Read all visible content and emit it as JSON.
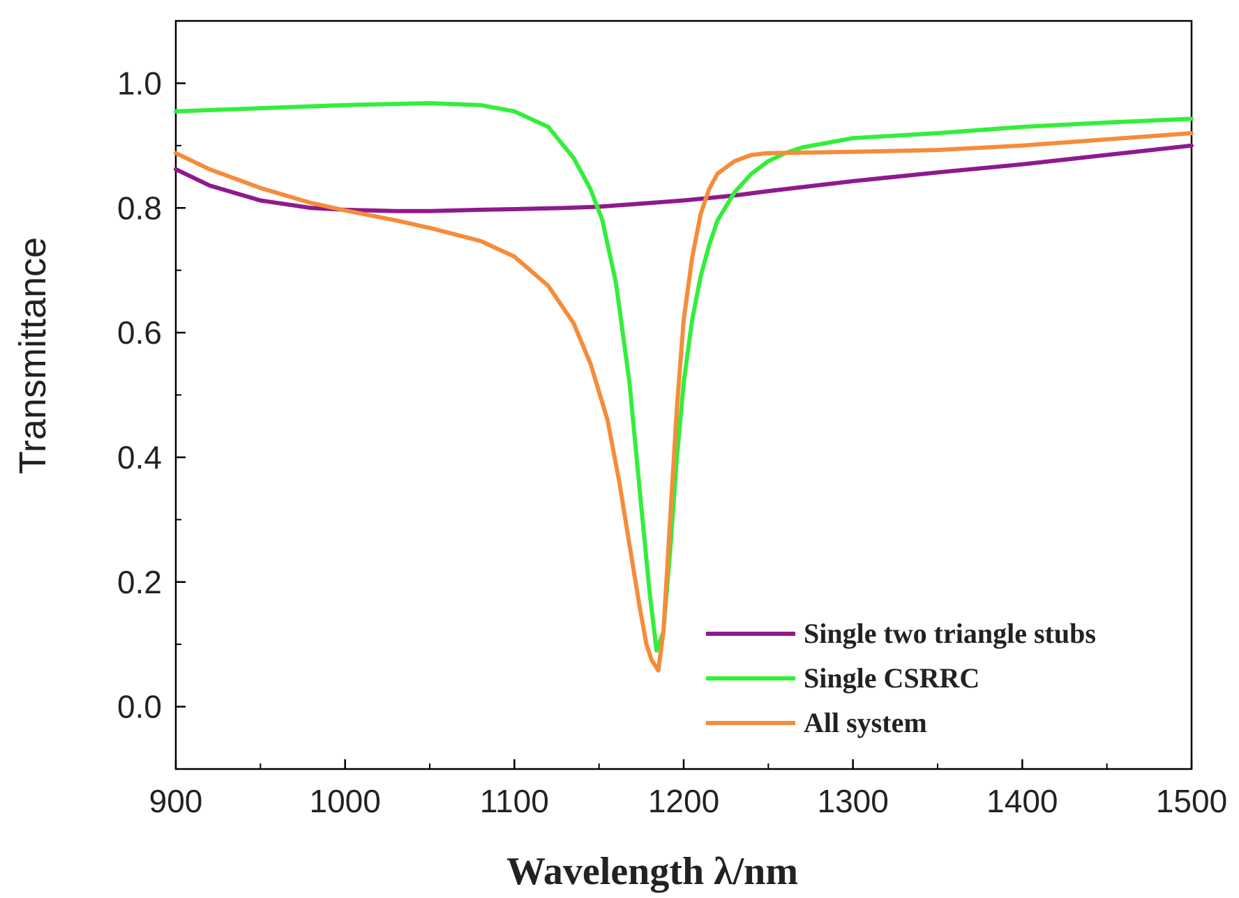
{
  "chart_data": {
    "type": "line",
    "title": "",
    "xlabel": "Wavelength λ/nm",
    "ylabel": "Transmittance",
    "xlim": [
      900,
      1500
    ],
    "ylim": [
      -0.1,
      1.1
    ],
    "x_ticks": [
      "900",
      "1000",
      "1100",
      "1200",
      "1300",
      "1400",
      "1500"
    ],
    "y_ticks": [
      "0.0",
      "0.2",
      "0.4",
      "0.6",
      "0.8",
      "1.0"
    ],
    "legend_position": "bottom-right",
    "grid": false,
    "series": [
      {
        "name": "Single two triangle stubs",
        "color": "#8e1a8c",
        "x": [
          900,
          920,
          950,
          980,
          1000,
          1030,
          1050,
          1080,
          1100,
          1130,
          1150,
          1180,
          1200,
          1230,
          1250,
          1300,
          1350,
          1400,
          1450,
          1500
        ],
        "y": [
          0.862,
          0.836,
          0.812,
          0.8,
          0.797,
          0.795,
          0.795,
          0.797,
          0.798,
          0.8,
          0.802,
          0.808,
          0.812,
          0.82,
          0.827,
          0.843,
          0.857,
          0.87,
          0.885,
          0.9
        ]
      },
      {
        "name": "Single CSRRC",
        "color": "#33ee3a",
        "x": [
          900,
          950,
          1000,
          1050,
          1080,
          1100,
          1120,
          1135,
          1145,
          1152,
          1160,
          1168,
          1175,
          1180,
          1184,
          1188,
          1192,
          1196,
          1200,
          1205,
          1210,
          1215,
          1220,
          1230,
          1240,
          1250,
          1260,
          1270,
          1300,
          1350,
          1400,
          1450,
          1500
        ],
        "y": [
          0.955,
          0.96,
          0.965,
          0.968,
          0.965,
          0.955,
          0.93,
          0.88,
          0.83,
          0.78,
          0.68,
          0.52,
          0.32,
          0.18,
          0.09,
          0.12,
          0.25,
          0.4,
          0.52,
          0.62,
          0.69,
          0.74,
          0.78,
          0.825,
          0.855,
          0.875,
          0.888,
          0.897,
          0.912,
          0.92,
          0.93,
          0.937,
          0.943
        ]
      },
      {
        "name": "All system",
        "color": "#f58c3a",
        "x": [
          900,
          920,
          950,
          980,
          1000,
          1030,
          1050,
          1080,
          1100,
          1120,
          1135,
          1145,
          1155,
          1162,
          1168,
          1174,
          1178,
          1181,
          1185,
          1188,
          1192,
          1196,
          1200,
          1205,
          1210,
          1215,
          1220,
          1230,
          1240,
          1250,
          1300,
          1350,
          1400,
          1450,
          1500
        ],
        "y": [
          0.888,
          0.862,
          0.832,
          0.808,
          0.796,
          0.78,
          0.768,
          0.747,
          0.722,
          0.675,
          0.615,
          0.55,
          0.46,
          0.36,
          0.26,
          0.16,
          0.1,
          0.075,
          0.058,
          0.12,
          0.3,
          0.48,
          0.62,
          0.72,
          0.79,
          0.83,
          0.855,
          0.875,
          0.885,
          0.888,
          0.89,
          0.893,
          0.9,
          0.91,
          0.92
        ]
      }
    ]
  }
}
